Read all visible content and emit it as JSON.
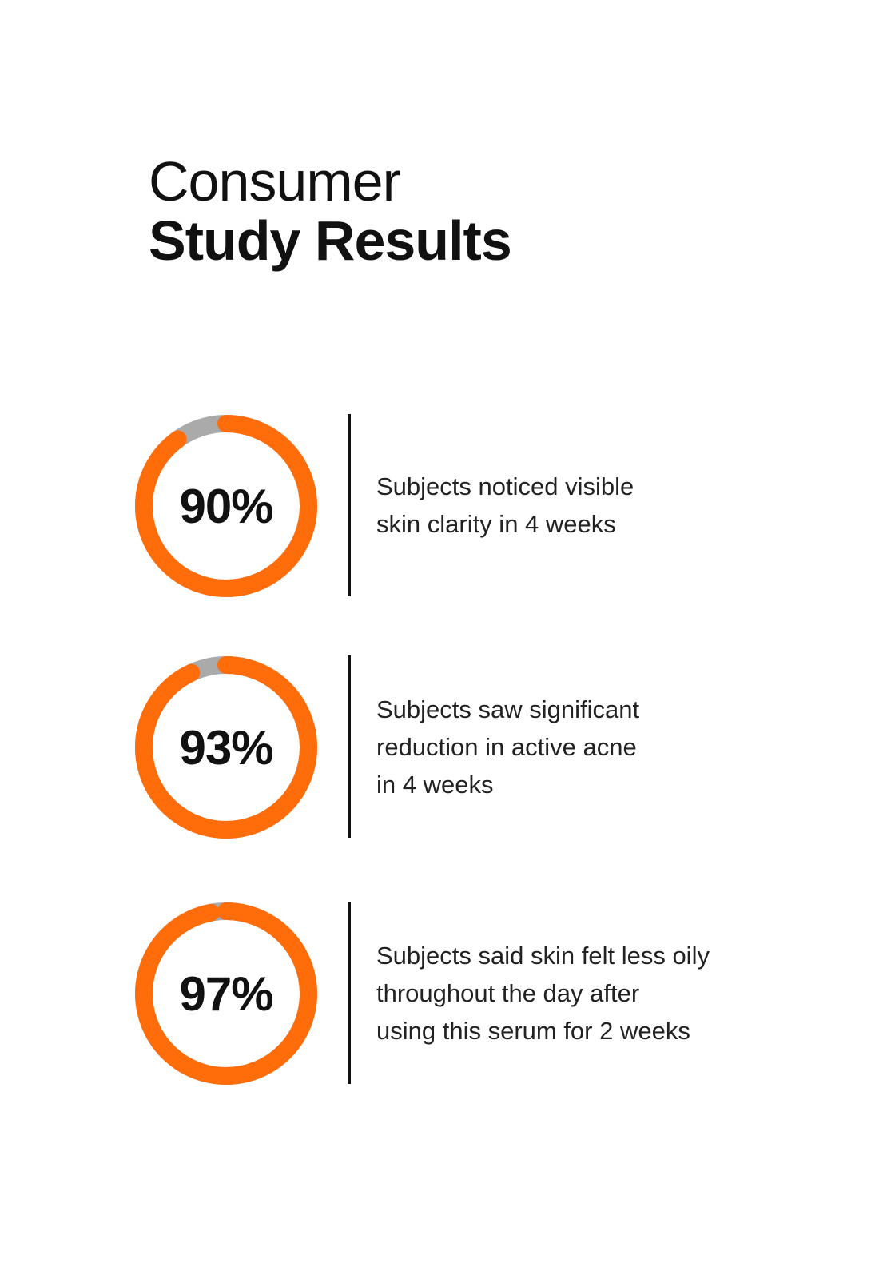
{
  "title": {
    "line1": "Consumer",
    "line2": "Study Results"
  },
  "colors": {
    "accent": "#FF6D0A",
    "track": "#AAAAAA",
    "text": "#111111"
  },
  "stats": [
    {
      "value": 90,
      "label": "90%",
      "description": "Subjects noticed visible skin clarity in 4 weeks",
      "lines": [
        "Subjects noticed visible",
        "skin clarity in 4 weeks"
      ]
    },
    {
      "value": 93,
      "label": "93%",
      "description": "Subjects saw significant reduction in active acne in 4 weeks",
      "lines": [
        "Subjects saw significant",
        "reduction in active acne",
        "in 4 weeks"
      ]
    },
    {
      "value": 97,
      "label": "97%",
      "description": "Subjects said skin felt less oily throughout the day after using this serum for 2 weeks",
      "lines": [
        "Subjects said skin felt less oily",
        "throughout the day after",
        "using this serum for 2 weeks"
      ]
    }
  ]
}
